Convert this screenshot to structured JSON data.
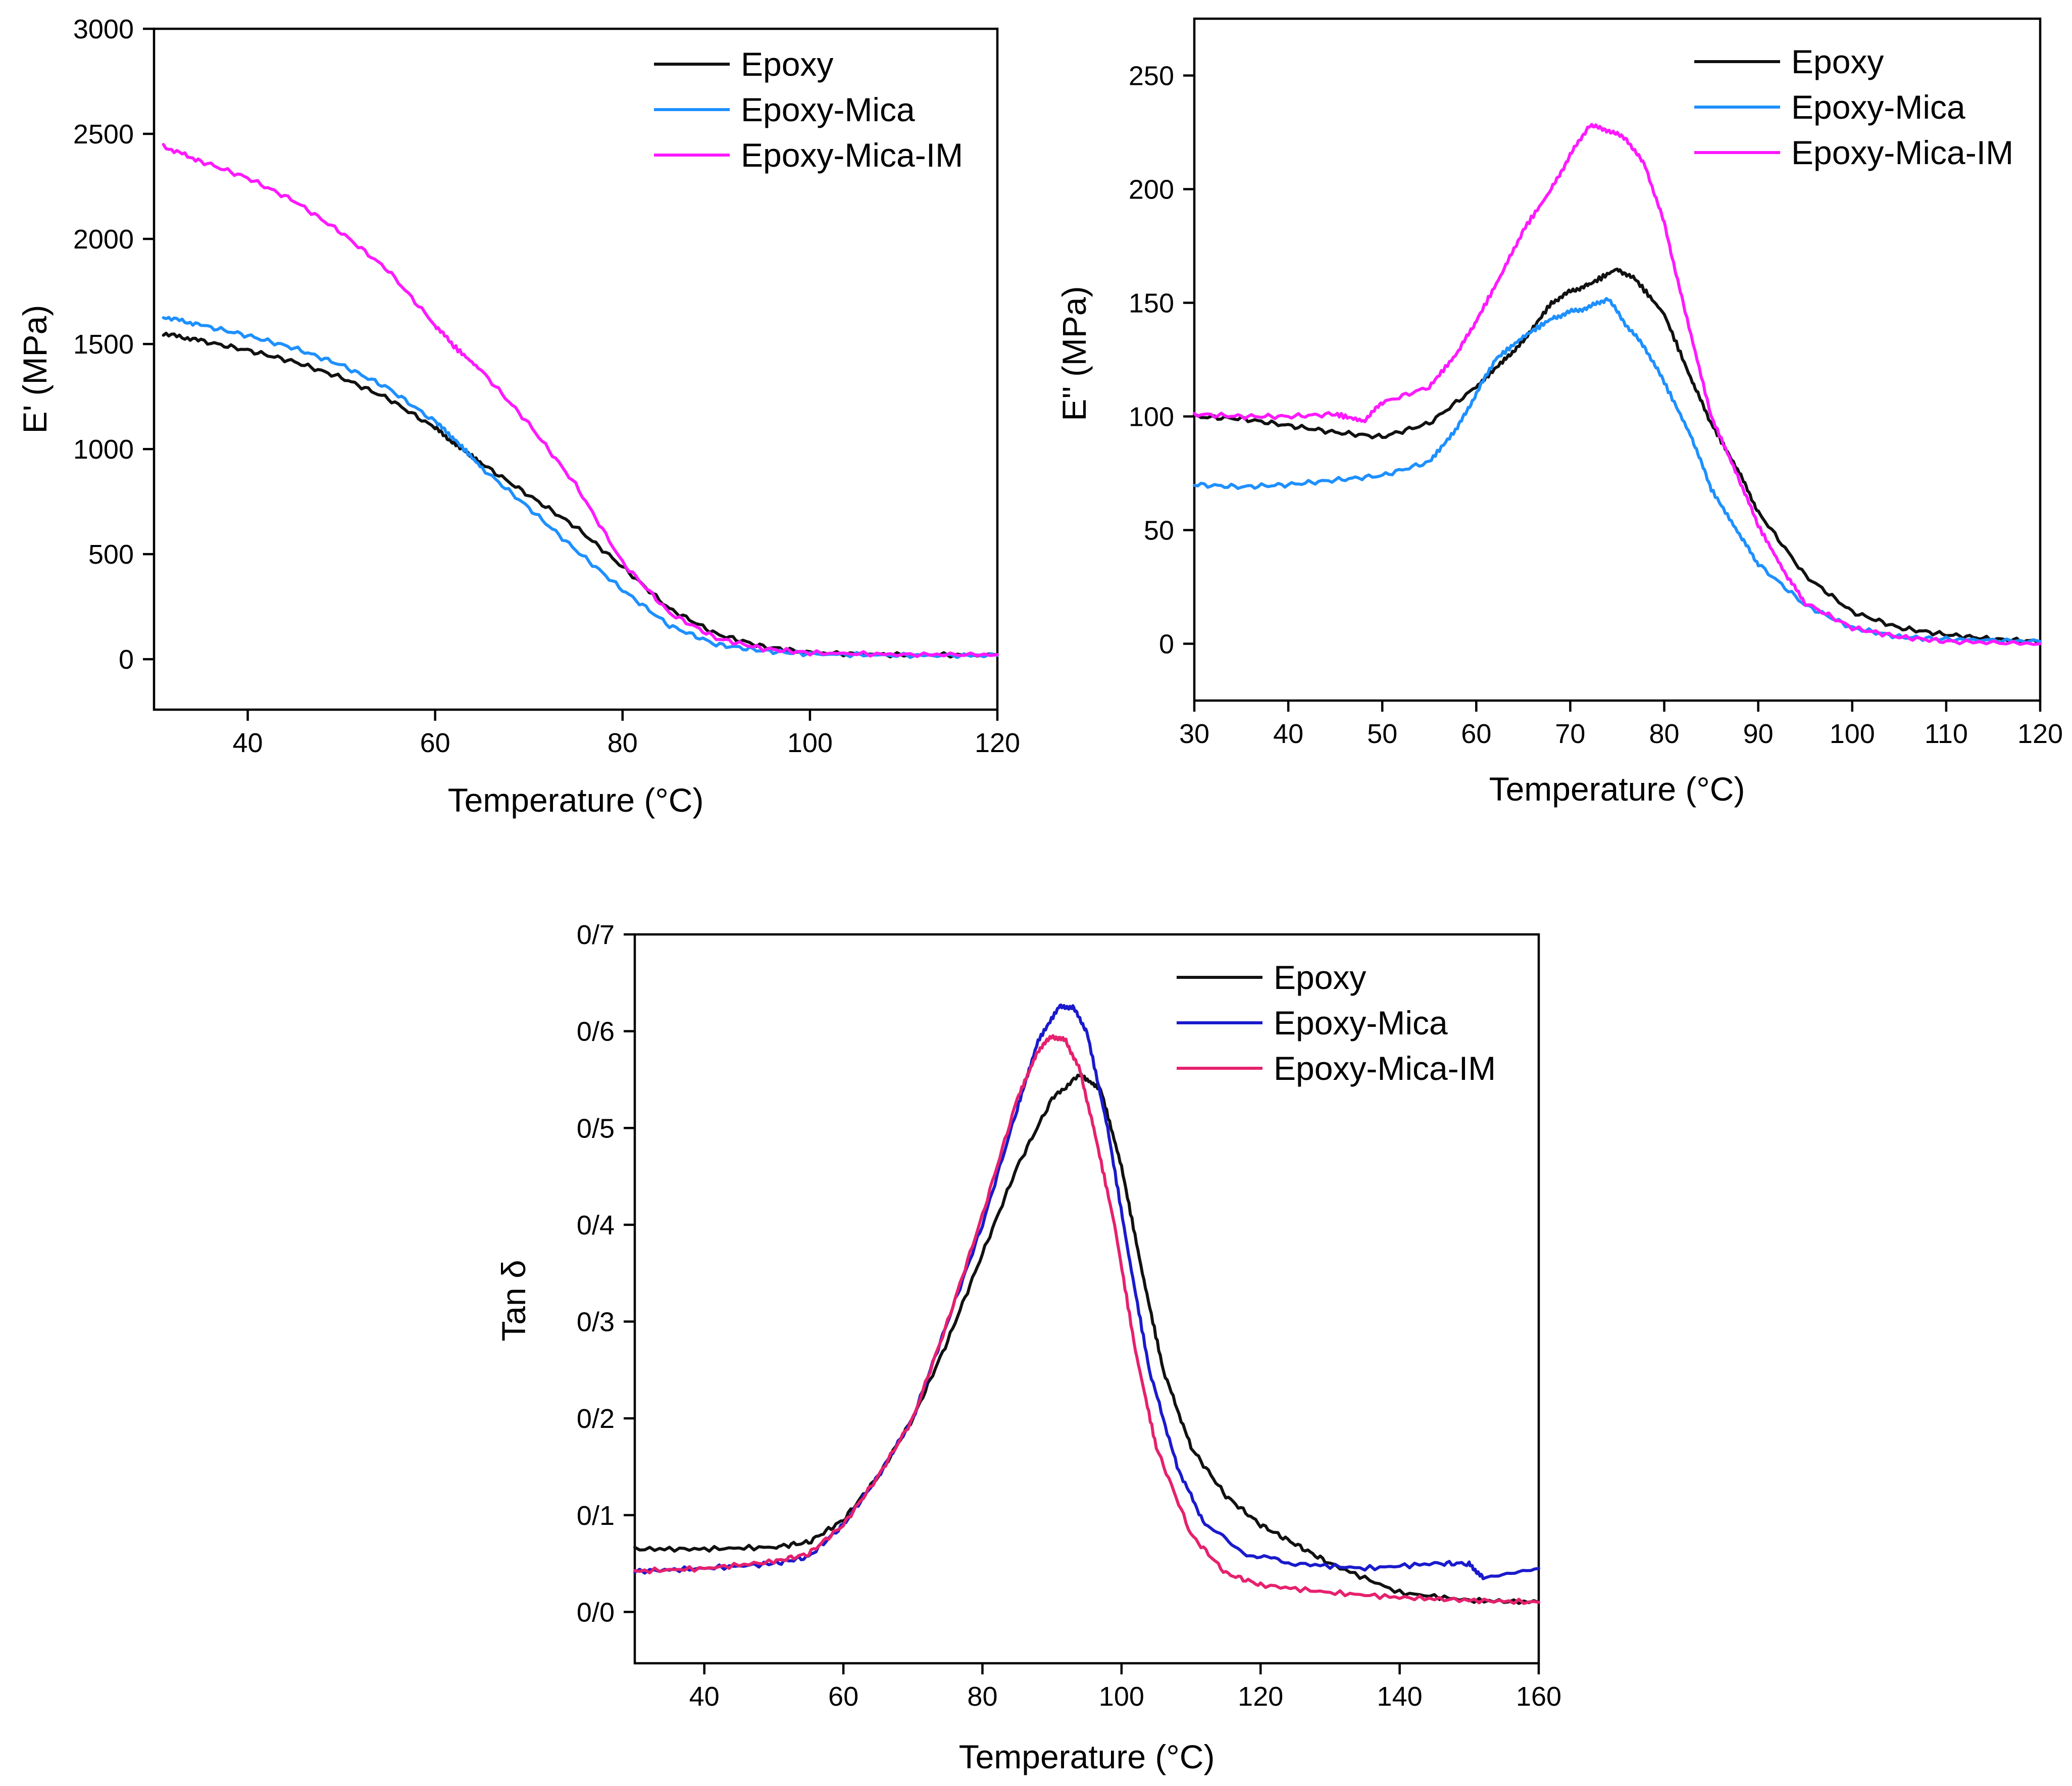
{
  "chart_data": [
    {
      "type": "line",
      "panel": "storage-modulus",
      "title": "",
      "xlabel": "Temperature (°C)",
      "ylabel": "E' (MPa)",
      "xlim": [
        30,
        120
      ],
      "ylim": [
        -240,
        3000
      ],
      "xticks": [
        40,
        60,
        80,
        100,
        120
      ],
      "xtick_labels": [
        "40",
        "60",
        "80",
        "100",
        "120"
      ],
      "yticks": [
        0,
        500,
        1000,
        1500,
        2000,
        2500,
        3000
      ],
      "ytick_labels": [
        "0",
        "500",
        "1000",
        "1500",
        "2000",
        "2500",
        "3000"
      ],
      "legend_position": "top-right",
      "series": [
        {
          "name": "Epoxy",
          "color": "#111111",
          "x": [
            31,
            35,
            40,
            45,
            50,
            55,
            60,
            62,
            65,
            70,
            75,
            80,
            85,
            90,
            95,
            100,
            110,
            120
          ],
          "y": [
            1550,
            1515,
            1470,
            1415,
            1340,
            1240,
            1100,
            1030,
            930,
            780,
            630,
            440,
            240,
            120,
            60,
            30,
            20,
            20
          ]
        },
        {
          "name": "Epoxy-Mica",
          "color": "#1e90ff",
          "x": [
            31,
            35,
            40,
            45,
            50,
            55,
            60,
            62,
            65,
            70,
            75,
            80,
            85,
            90,
            95,
            100,
            110,
            120
          ],
          "y": [
            1630,
            1590,
            1540,
            1480,
            1400,
            1290,
            1130,
            1050,
            910,
            720,
            520,
            330,
            160,
            70,
            40,
            25,
            18,
            18
          ]
        },
        {
          "name": "Epoxy-Mica-IM",
          "color": "#ff19ff",
          "x": [
            31,
            35,
            40,
            45,
            50,
            55,
            60,
            62,
            65,
            70,
            75,
            80,
            85,
            90,
            95,
            100,
            110,
            120
          ],
          "y": [
            2440,
            2370,
            2290,
            2180,
            2030,
            1850,
            1590,
            1490,
            1370,
            1120,
            830,
            460,
            220,
            100,
            50,
            30,
            22,
            22
          ]
        }
      ]
    },
    {
      "type": "line",
      "panel": "loss-modulus",
      "title": "",
      "xlabel": "Temperature (°C)",
      "ylabel": "E'' (MPa)",
      "xlim": [
        30,
        120
      ],
      "ylim": [
        -25,
        275
      ],
      "xticks": [
        30,
        40,
        50,
        60,
        70,
        80,
        90,
        100,
        110,
        120
      ],
      "xtick_labels": [
        "30",
        "40",
        "50",
        "60",
        "70",
        "80",
        "90",
        "100",
        "110",
        "120"
      ],
      "yticks": [
        0,
        50,
        100,
        150,
        200,
        250
      ],
      "ytick_labels": [
        "0",
        "50",
        "100",
        "150",
        "200",
        "250"
      ],
      "legend_position": "top-right",
      "series": [
        {
          "name": "Epoxy",
          "color": "#111111",
          "x": [
            30,
            35,
            40,
            45,
            50,
            55,
            60,
            63,
            65,
            68,
            70,
            72,
            75,
            77,
            80,
            83,
            85,
            88,
            90,
            95,
            100,
            105,
            110,
            115,
            120
          ],
          "y": [
            100,
            99,
            96,
            93,
            91,
            97,
            113,
            125,
            133,
            150,
            155,
            158,
            165,
            160,
            145,
            115,
            97,
            75,
            58,
            30,
            14,
            7,
            4,
            2,
            1
          ]
        },
        {
          "name": "Epoxy-Mica",
          "color": "#1e90ff",
          "x": [
            30,
            35,
            40,
            45,
            50,
            55,
            58,
            60,
            62,
            65,
            68,
            70,
            72,
            74,
            76,
            78,
            80,
            83,
            85,
            88,
            90,
            95,
            100,
            105,
            110,
            120
          ],
          "y": [
            70,
            69,
            70,
            72,
            74,
            80,
            95,
            110,
            125,
            135,
            143,
            146,
            148,
            152,
            140,
            130,
            115,
            90,
            68,
            48,
            35,
            17,
            7,
            3,
            2,
            1
          ]
        },
        {
          "name": "Epoxy-Mica-IM",
          "color": "#ff19ff",
          "x": [
            30,
            35,
            40,
            45,
            48,
            50,
            55,
            58,
            60,
            63,
            65,
            68,
            70,
            72,
            74,
            76,
            78,
            80,
            82,
            85,
            88,
            90,
            93,
            95,
            100,
            105,
            110,
            120
          ],
          "y": [
            101,
            100,
            100,
            101,
            98,
            106,
            113,
            128,
            142,
            165,
            182,
            200,
            215,
            228,
            226,
            222,
            210,
            185,
            150,
            100,
            72,
            52,
            30,
            18,
            7,
            3,
            1,
            0
          ]
        }
      ]
    },
    {
      "type": "line",
      "panel": "tan-delta",
      "title": "",
      "xlabel": "Temperature (°C)",
      "ylabel": "Tan δ",
      "xlim": [
        30,
        160
      ],
      "ylim": [
        -0.053,
        0.7
      ],
      "xticks": [
        40,
        60,
        80,
        100,
        120,
        140,
        160
      ],
      "xtick_labels": [
        "40",
        "60",
        "80",
        "100",
        "120",
        "140",
        "160"
      ],
      "yticks": [
        0,
        0.1,
        0.2,
        0.3,
        0.4,
        0.5,
        0.6,
        0.7
      ],
      "ytick_labels": [
        "0/0",
        "0/1",
        "0/2",
        "0/3",
        "0/4",
        "0/5",
        "0/6",
        "0/7"
      ],
      "legend_position": "top-right",
      "series": [
        {
          "name": "Epoxy",
          "color": "#111111",
          "x": [
            30,
            40,
            50,
            55,
            60,
            65,
            70,
            75,
            80,
            85,
            90,
            94,
            97,
            100,
            103,
            106,
            110,
            115,
            120,
            125,
            130,
            140,
            150,
            160
          ],
          "y": [
            0.065,
            0.065,
            0.067,
            0.072,
            0.095,
            0.14,
            0.2,
            0.28,
            0.37,
            0.46,
            0.53,
            0.555,
            0.54,
            0.46,
            0.35,
            0.25,
            0.17,
            0.12,
            0.09,
            0.07,
            0.05,
            0.02,
            0.012,
            0.01
          ]
        },
        {
          "name": "Epoxy-Mica",
          "color": "#1a1acc",
          "x": [
            30,
            40,
            50,
            55,
            60,
            65,
            70,
            75,
            80,
            85,
            88,
            91,
            93,
            95,
            98,
            101,
            104,
            108,
            112,
            118,
            125,
            135,
            145,
            150,
            152,
            160
          ],
          "y": [
            0.042,
            0.045,
            0.05,
            0.057,
            0.09,
            0.14,
            0.2,
            0.3,
            0.4,
            0.52,
            0.59,
            0.625,
            0.625,
            0.6,
            0.5,
            0.37,
            0.25,
            0.15,
            0.09,
            0.06,
            0.05,
            0.045,
            0.05,
            0.05,
            0.035,
            0.045
          ]
        },
        {
          "name": "Epoxy-Mica-IM",
          "color": "#e6216e",
          "x": [
            30,
            40,
            50,
            55,
            60,
            65,
            70,
            75,
            80,
            85,
            88,
            90,
            92,
            94,
            96,
            99,
            102,
            105,
            110,
            115,
            120,
            130,
            140,
            150,
            160
          ],
          "y": [
            0.042,
            0.045,
            0.052,
            0.06,
            0.09,
            0.14,
            0.2,
            0.3,
            0.41,
            0.53,
            0.58,
            0.595,
            0.59,
            0.56,
            0.5,
            0.4,
            0.27,
            0.17,
            0.08,
            0.04,
            0.028,
            0.02,
            0.015,
            0.012,
            0.01
          ]
        }
      ]
    }
  ]
}
